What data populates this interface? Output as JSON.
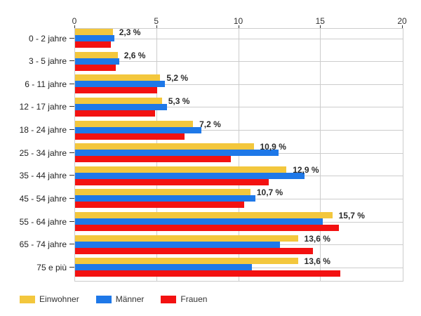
{
  "chart_data": {
    "type": "bar",
    "orientation": "horizontal",
    "title": "",
    "xlabel": "",
    "ylabel": "",
    "xlim": [
      0,
      20
    ],
    "x_ticks": [
      "0",
      "5",
      "10",
      "15",
      "20"
    ],
    "x_tick_values": [
      0,
      5,
      10,
      15,
      20
    ],
    "grid": true,
    "legend_position": "bottom-left",
    "categories": [
      "0 - 2 jahre",
      "3 - 5 jahre",
      "6 - 11 jahre",
      "12 - 17 jahre",
      "18 - 24 jahre",
      "25 - 34 jahre",
      "35 - 44 jahre",
      "45 - 54 jahre",
      "55 - 64 jahre",
      "65 - 74 jahre",
      "75 e più"
    ],
    "series": [
      {
        "name": "Einwohner",
        "color": "#F3C73D",
        "values": [
          2.3,
          2.6,
          5.2,
          5.3,
          7.2,
          10.9,
          12.9,
          10.7,
          15.7,
          13.6,
          13.6
        ]
      },
      {
        "name": "Männer",
        "color": "#1E78E8",
        "values": [
          2.4,
          2.7,
          5.5,
          5.6,
          7.7,
          12.4,
          14.0,
          11.0,
          15.1,
          12.5,
          10.8
        ]
      },
      {
        "name": "Frauen",
        "color": "#F31111",
        "values": [
          2.2,
          2.5,
          5.0,
          4.9,
          6.7,
          9.5,
          11.8,
          10.3,
          16.1,
          14.5,
          16.2
        ]
      }
    ],
    "bar_labels": [
      "2,3 %",
      "2,6 %",
      "5,2 %",
      "5,3 %",
      "7,2 %",
      "10,9 %",
      "12,9 %",
      "10,7 %",
      "15,7 %",
      "13,6 %",
      "13,6 %"
    ],
    "bar_label_series": "Einwohner"
  },
  "colors": {
    "grid": "#cccccc",
    "axis_text": "#333333",
    "value_label": "#2b2b2b",
    "background": "#ffffff"
  }
}
